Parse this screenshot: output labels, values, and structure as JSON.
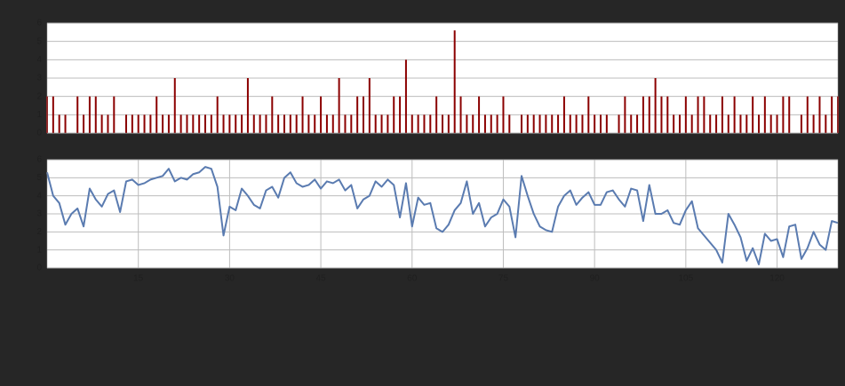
{
  "chart_data": [
    {
      "type": "bar",
      "color": "#8b0000",
      "x": [
        0,
        1,
        2,
        3,
        4,
        5,
        6,
        7,
        8,
        9,
        10,
        11,
        12,
        13,
        14,
        15,
        16,
        17,
        18,
        19,
        20,
        21,
        22,
        23,
        24,
        25,
        26,
        27,
        28,
        29,
        30,
        31,
        32,
        33,
        34,
        35,
        36,
        37,
        38,
        39,
        40,
        41,
        42,
        43,
        44,
        45,
        46,
        47,
        48,
        49,
        50,
        51,
        52,
        53,
        54,
        55,
        56,
        57,
        58,
        59,
        60,
        61,
        62,
        63,
        64,
        65,
        66,
        67,
        68,
        69,
        70,
        71,
        72,
        73,
        74,
        75,
        76,
        77,
        78,
        79,
        80,
        81,
        82,
        83,
        84,
        85,
        86,
        87,
        88,
        89,
        90,
        91,
        92,
        93,
        94,
        95,
        96,
        97,
        98,
        99,
        100,
        101,
        102,
        103,
        104,
        105,
        106,
        107,
        108,
        109,
        110,
        111,
        112,
        113,
        114,
        115,
        116,
        117,
        118,
        119,
        120,
        121,
        122,
        123,
        124,
        125,
        126,
        127,
        128,
        129,
        130
      ],
      "values": [
        2,
        2,
        1,
        1,
        0,
        2,
        1,
        2,
        2,
        1,
        1,
        2,
        0,
        1,
        1,
        1,
        1,
        1,
        2,
        1,
        1,
        3,
        1,
        1,
        1,
        1,
        1,
        1,
        2,
        1,
        1,
        1,
        1,
        3,
        1,
        1,
        1,
        2,
        1,
        1,
        1,
        1,
        2,
        1,
        1,
        2,
        1,
        1,
        3,
        1,
        1,
        2,
        2,
        3,
        1,
        1,
        1,
        2,
        2,
        4,
        1,
        1,
        1,
        1,
        2,
        1,
        1,
        5.6,
        2,
        1,
        1,
        2,
        1,
        1,
        1,
        2,
        1,
        0,
        1,
        1,
        1,
        1,
        1,
        1,
        1,
        2,
        1,
        1,
        1,
        2,
        1,
        1,
        1,
        0,
        1,
        2,
        1,
        1,
        2,
        2,
        3,
        2,
        2,
        1,
        1,
        2,
        1,
        2,
        2,
        1,
        1,
        2,
        1,
        2,
        1,
        1,
        2,
        1,
        2,
        1,
        1,
        2,
        2,
        0,
        1,
        2,
        1,
        2,
        1,
        2,
        2
      ],
      "xlim": [
        0,
        130
      ],
      "ylim": [
        0,
        6
      ],
      "yticks": [
        0,
        1,
        2,
        3,
        4,
        5,
        6
      ],
      "grid": true
    },
    {
      "type": "line",
      "color": "#5a7bb0",
      "x": [
        0,
        1,
        2,
        3,
        4,
        5,
        6,
        7,
        8,
        9,
        10,
        11,
        12,
        13,
        14,
        15,
        16,
        17,
        18,
        19,
        20,
        21,
        22,
        23,
        24,
        25,
        26,
        27,
        28,
        29,
        30,
        31,
        32,
        33,
        34,
        35,
        36,
        37,
        38,
        39,
        40,
        41,
        42,
        43,
        44,
        45,
        46,
        47,
        48,
        49,
        50,
        51,
        52,
        53,
        54,
        55,
        56,
        57,
        58,
        59,
        60,
        61,
        62,
        63,
        64,
        65,
        66,
        67,
        68,
        69,
        70,
        71,
        72,
        73,
        74,
        75,
        76,
        77,
        78,
        79,
        80,
        81,
        82,
        83,
        84,
        85,
        86,
        87,
        88,
        89,
        90,
        91,
        92,
        93,
        94,
        95,
        96,
        97,
        98,
        99,
        100,
        101,
        102,
        103,
        104,
        105,
        106,
        107,
        108,
        109,
        110,
        111,
        112,
        113,
        114,
        115,
        116,
        117,
        118,
        119,
        120,
        121,
        122,
        123,
        124,
        125,
        126,
        127,
        128,
        129,
        130
      ],
      "values": [
        5.3,
        4,
        3.6,
        2.4,
        3,
        3.3,
        2.3,
        4.4,
        3.8,
        3.4,
        4.1,
        4.3,
        3.1,
        4.8,
        4.9,
        4.6,
        4.7,
        4.9,
        5.0,
        5.1,
        5.5,
        4.8,
        5.0,
        4.9,
        5.2,
        5.3,
        5.6,
        5.5,
        4.5,
        1.8,
        3.4,
        3.2,
        4.4,
        4.0,
        3.5,
        3.3,
        4.3,
        4.5,
        3.9,
        5.0,
        5.3,
        4.7,
        4.5,
        4.6,
        4.9,
        4.4,
        4.8,
        4.7,
        4.9,
        4.3,
        4.6,
        3.3,
        3.8,
        4.0,
        4.8,
        4.5,
        4.9,
        4.6,
        2.8,
        4.7,
        2.3,
        3.9,
        3.5,
        3.6,
        2.2,
        2.0,
        2.4,
        3.2,
        3.6,
        4.8,
        3.0,
        3.6,
        2.3,
        2.8,
        3.0,
        3.8,
        3.4,
        1.7,
        5.1,
        4.0,
        3.0,
        2.3,
        2.1,
        2.0,
        3.4,
        4.0,
        4.3,
        3.5,
        3.9,
        4.2,
        3.5,
        3.5,
        4.2,
        4.3,
        3.8,
        3.4,
        4.4,
        4.3,
        2.6,
        4.6,
        3.0,
        3.0,
        3.2,
        2.5,
        2.4,
        3.2,
        3.7,
        2.2,
        1.8,
        1.4,
        1.0,
        0.3,
        3.0,
        2.4,
        1.7,
        0.4,
        1.1,
        0.2,
        1.9,
        1.5,
        1.6,
        0.6,
        2.3,
        2.4,
        0.5,
        1.1,
        2.0,
        1.3,
        1.0,
        2.6,
        2.5
      ],
      "xlim": [
        0,
        130
      ],
      "xticks": [
        15,
        30,
        45,
        60,
        75,
        90,
        105,
        120
      ],
      "ylim": [
        0,
        6
      ],
      "yticks": [
        0,
        1,
        2,
        3,
        4,
        5,
        6
      ],
      "grid": true
    }
  ]
}
